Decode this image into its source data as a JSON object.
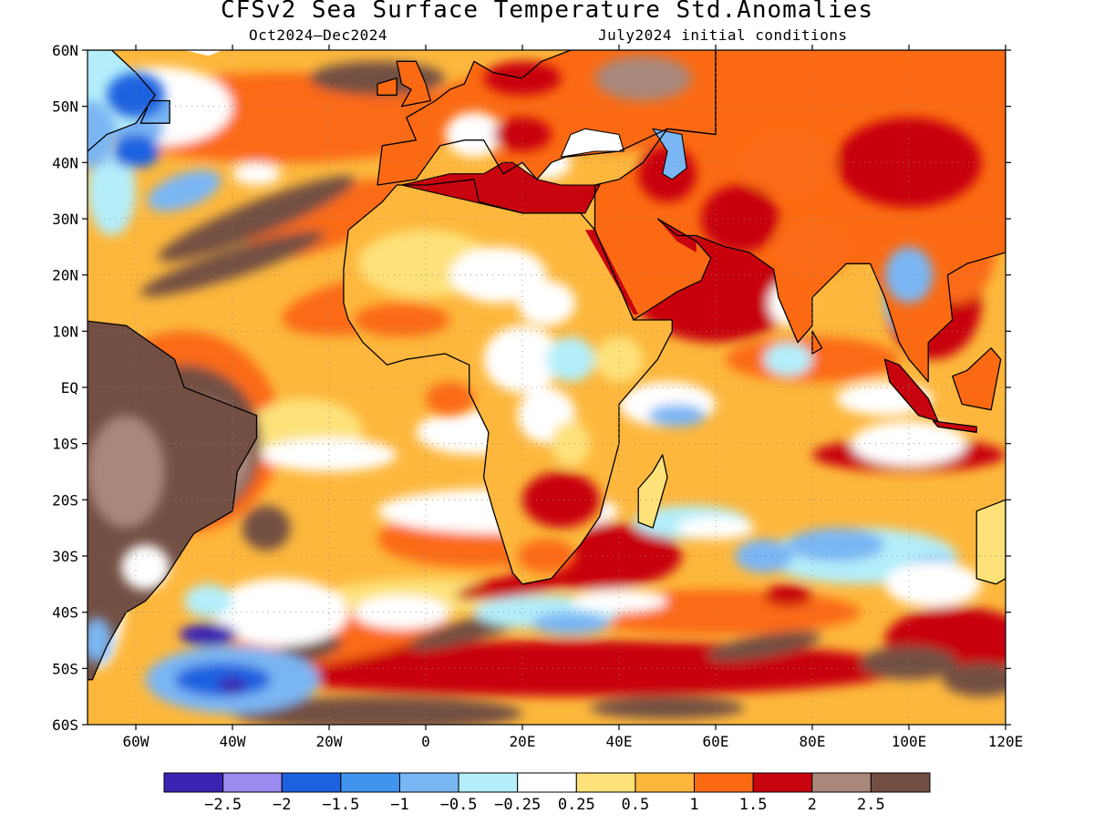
{
  "title": "CFSv2 Sea Surface Temperature Std.Anomalies",
  "subtitle_left": "Oct2024–Dec2024",
  "subtitle_right": "July2024 initial conditions",
  "lat_labels": [
    "60N",
    "50N",
    "40N",
    "30N",
    "20N",
    "10N",
    "EQ",
    "10S",
    "20S",
    "30S",
    "40S",
    "50S",
    "60S"
  ],
  "lon_labels": [
    "60W",
    "40W",
    "20W",
    "0",
    "20E",
    "40E",
    "60E",
    "80E",
    "100E",
    "120E"
  ],
  "colorbar": {
    "colors": [
      "#3a22b3",
      "#9b8af0",
      "#1c62e0",
      "#3f94ee",
      "#7ab6f4",
      "#b4eefa",
      "#ffffff",
      "#fde27a",
      "#fdb73c",
      "#fb6a12",
      "#c8040e",
      "#a9877a",
      "#734f43"
    ],
    "labels": [
      "−2.5",
      "−2",
      "−1.5",
      "−1",
      "−0.5",
      "−0.25",
      "0.25",
      "0.5",
      "1",
      "1.5",
      "2",
      "2.5"
    ]
  },
  "map": {
    "lon_range": [
      -70,
      120
    ],
    "lat_range": [
      -60,
      60
    ],
    "colors": {
      "ocean_base": "#fdb73c",
      "ice": "#ffffff",
      "neg_strong": "#3a22b3",
      "neg_mid": "#1c62e0",
      "neg_light": "#7ab6f4",
      "neg_faint": "#b4eefa",
      "neutral": "#ffffff",
      "pos_faint": "#fde27a",
      "pos_light": "#fdb73c",
      "pos_mid": "#fb6a12",
      "pos_high": "#c8040e",
      "pos_very": "#a9877a",
      "pos_extreme": "#734f43"
    }
  }
}
